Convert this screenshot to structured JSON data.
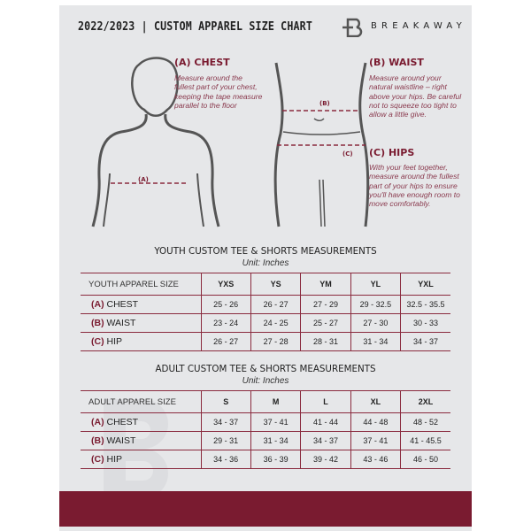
{
  "header": {
    "title": "2022/2023 | CUSTOM APPAREL SIZE CHART",
    "brand": "BREAKAWAY",
    "logo_letter": "B"
  },
  "measures": {
    "chest": {
      "heading": "(A) CHEST",
      "desc": "Measure around the fullest part of your chest, keeping the tape measure parallel to the floor",
      "marker": "(A)"
    },
    "waist": {
      "heading": "(B) WAIST",
      "desc": "Measure around your natural waistline – right above your hips. Be careful not to squeeze too tight to allow a little give.",
      "marker": "(B)"
    },
    "hips": {
      "heading": "(C) HIPS",
      "desc": "With your feet together, measure around the fullest part of your hips to ensure you'll have enough room to move comfortably.",
      "marker": "(C)"
    }
  },
  "youth": {
    "title": "YOUTH CUSTOM TEE & SHORTS MEASUREMENTS",
    "unit": "Unit: Inches",
    "header": [
      "YOUTH APPAREL SIZE",
      "YXS",
      "YS",
      "YM",
      "YL",
      "YXL"
    ],
    "rows": [
      {
        "label": "(A)",
        "name": "CHEST",
        "values": [
          "25 - 26",
          "26 - 27",
          "27 - 29",
          "29 - 32.5",
          "32.5 - 35.5"
        ]
      },
      {
        "label": "(B)",
        "name": "WAIST",
        "values": [
          "23 - 24",
          "24 - 25",
          "25 - 27",
          "27 - 30",
          "30 - 33"
        ]
      },
      {
        "label": "(C)",
        "name": "HIP",
        "values": [
          "26 - 27",
          "27 - 28",
          "28 - 31",
          "31 - 34",
          "34 - 37"
        ]
      }
    ]
  },
  "adult": {
    "title": "ADULT CUSTOM TEE & SHORTS MEASUREMENTS",
    "unit": "Unit: Inches",
    "header": [
      "ADULT APPAREL SIZE",
      "S",
      "M",
      "L",
      "XL",
      "2XL"
    ],
    "rows": [
      {
        "label": "(A)",
        "name": "CHEST",
        "values": [
          "34 - 37",
          "37 - 41",
          "41 - 44",
          "44 - 48",
          "48 - 52"
        ]
      },
      {
        "label": "(B)",
        "name": "WAIST",
        "values": [
          "29 - 31",
          "31 - 34",
          "34 - 37",
          "37 - 41",
          "41 - 45.5"
        ]
      },
      {
        "label": "(C)",
        "name": "HIP",
        "values": [
          "34 - 36",
          "36 - 39",
          "39 - 42",
          "43 - 46",
          "46 - 50"
        ]
      }
    ]
  },
  "colors": {
    "accent": "#7a1b30",
    "background": "#e6e7e9"
  }
}
